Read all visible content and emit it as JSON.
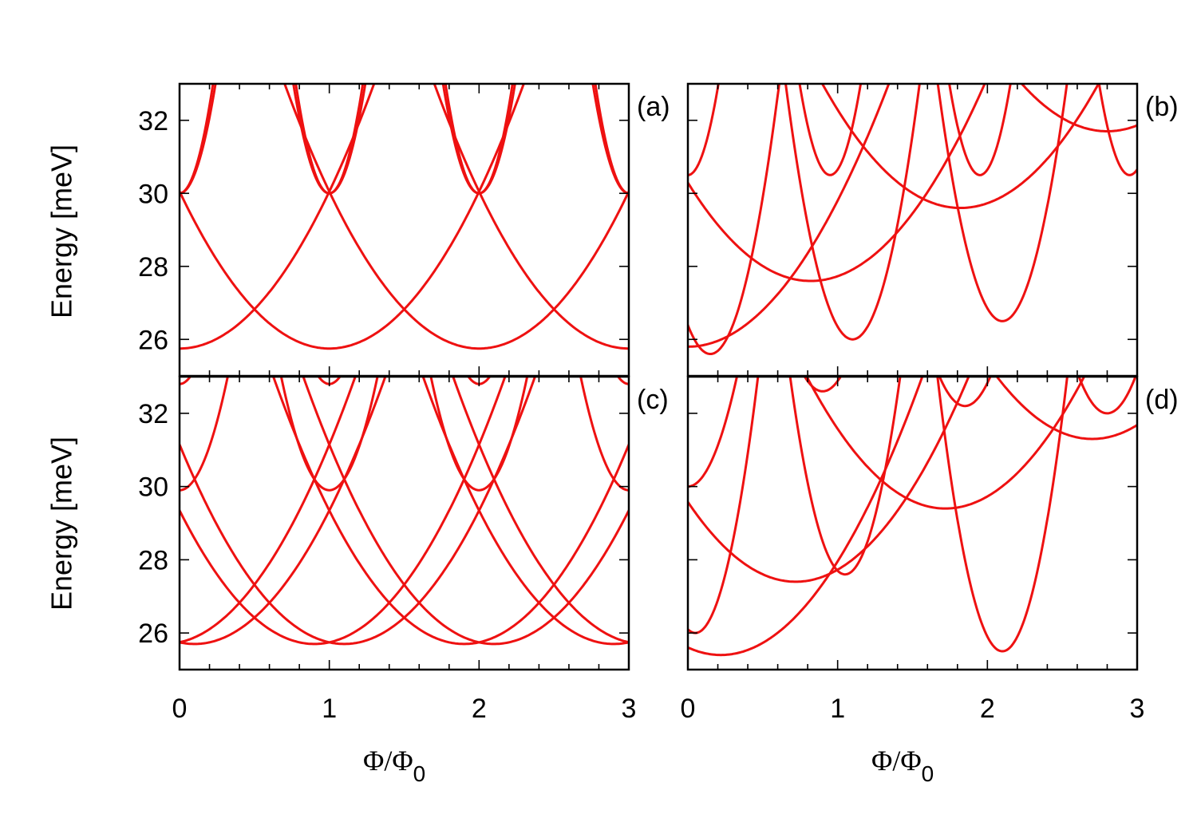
{
  "chart_data": {
    "type": "line",
    "colors": {
      "curve": "#ee1111",
      "axes": "#000000",
      "background": "#ffffff"
    },
    "ylabel": "Energy [meV]",
    "xlabel": {
      "main": "Φ/Φ",
      "subscript": "0"
    },
    "xlim": [
      0,
      3
    ],
    "ylim": [
      25,
      33
    ],
    "x_ticks": [
      "0",
      "1",
      "2",
      "3"
    ],
    "y_ticks": [
      "26",
      "28",
      "30",
      "32"
    ],
    "grid": false,
    "legend": "none",
    "panels": [
      {
        "label": "(a)",
        "families": [
          {
            "kind": "parabola",
            "centers": [
              0,
              1,
              2,
              3
            ],
            "minimum": 25.75,
            "curvature": 4.3
          },
          {
            "kind": "parabola",
            "centers": [
              0,
              1,
              2,
              3
            ],
            "minimum": 30.0,
            "curvature": 60
          },
          {
            "kind": "parabola",
            "centers": [
              0,
              1,
              2,
              3
            ],
            "minimum": 30.0,
            "curvature": 52
          }
        ]
      },
      {
        "label": "(b)",
        "families": [
          {
            "kind": "parabola",
            "centers": [
              0.0,
              0.82,
              1.82,
              2.8
            ],
            "minimum": 27.6,
            "curvature": 4.0,
            "minima": [
              25.8,
              27.6,
              29.6,
              31.7
            ]
          },
          {
            "kind": "parabola",
            "centers": [
              0.15,
              1.1,
              2.1
            ],
            "minimum": 25.6,
            "curvature": 35,
            "minima": [
              25.6,
              26.0,
              26.5
            ]
          },
          {
            "kind": "parabola",
            "centers": [
              0.0,
              0.95,
              1.95,
              2.95
            ],
            "minimum": 30.5,
            "curvature": 60,
            "minima": [
              30.5,
              30.5,
              30.5,
              30.5
            ]
          }
        ]
      },
      {
        "label": "(c)",
        "families": [
          {
            "kind": "parabola",
            "centers": [
              -0.1,
              0.9,
              1.9,
              2.9
            ],
            "minimum": 25.7,
            "curvature": 4.5
          },
          {
            "kind": "parabola",
            "centers": [
              0.1,
              1.1,
              2.1,
              3.1
            ],
            "minimum": 25.7,
            "curvature": 4.5
          },
          {
            "kind": "parabola",
            "centers": [
              0,
              1,
              2,
              3
            ],
            "minimum": 32.8,
            "curvature": 40
          },
          {
            "kind": "parabola",
            "centers": [
              0,
              1,
              2,
              3
            ],
            "minimum": 29.9,
            "curvature": 30
          }
        ]
      },
      {
        "label": "(d)",
        "families": [
          {
            "kind": "parabola",
            "centers": [
              0.22,
              0.72,
              1.72,
              2.7
            ],
            "minimum": 27.4,
            "curvature": 4.2,
            "minima": [
              25.4,
              27.4,
              29.4,
              31.3
            ]
          },
          {
            "kind": "parabola",
            "centers": [
              0.0,
              0.9,
              1.85,
              2.8
            ],
            "minimum": 30.0,
            "curvature": 28,
            "minima": [
              30.0,
              32.6,
              32.2,
              32.0
            ]
          },
          {
            "kind": "parabola",
            "centers": [
              0.05,
              1.05,
              2.1
            ],
            "minimum": 26.0,
            "curvature": 40,
            "minima": [
              26.0,
              27.6,
              25.5
            ]
          }
        ]
      }
    ]
  }
}
